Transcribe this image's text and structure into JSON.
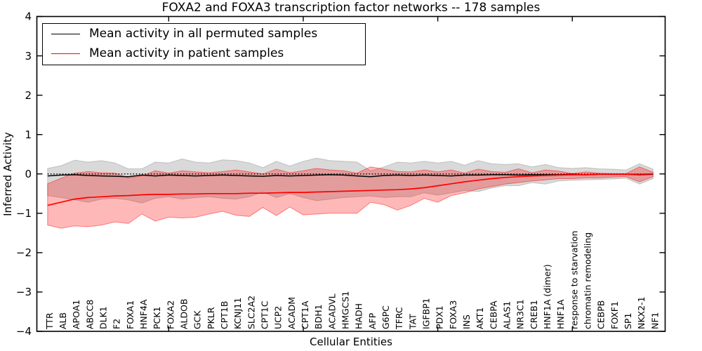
{
  "figure": {
    "title": "FOXA2 and FOXA3 transcription factor networks -- 178 samples",
    "background": "#ffffff"
  },
  "legend": {
    "position": "upper left",
    "items": [
      {
        "label": "Mean activity in all permuted samples",
        "color": "#000000"
      },
      {
        "label": "Mean activity in patient samples",
        "color": "#ff0000"
      }
    ]
  },
  "chart_data": {
    "type": "line",
    "title": "FOXA2 and FOXA3 transcription factor networks -- 178 samples",
    "xlabel": "Cellular Entities",
    "ylabel": "Inferred Activity",
    "ylim": [
      -4,
      4
    ],
    "y_tick_values": [
      4,
      3,
      2,
      1,
      0,
      -1,
      -2,
      -3,
      -4
    ],
    "y_tick_labels": [
      "4",
      "3",
      "2",
      "1",
      "0",
      "−1",
      "−2",
      "−3",
      "−4"
    ],
    "x_major_ticks": [
      10,
      20,
      30,
      40
    ],
    "grid": false,
    "legend_position": "upper left",
    "zero_reference_line": {
      "y": 0,
      "style": "dotted",
      "color": "#000000"
    },
    "categories": [
      "TTR",
      "ALB",
      "APOA1",
      "ABCC8",
      "DLK1",
      "F2",
      "FOXA1",
      "HNF4A",
      "PCK1",
      "FOXA2",
      "ALDOB",
      "GCK",
      "PKLR",
      "CPT1B",
      "KCNJ11",
      "SLC2A2",
      "CPT1C",
      "UCP2",
      "ACADM",
      "CPT1A",
      "BDH1",
      "ACADVL",
      "HMGCS1",
      "HADH",
      "AFP",
      "G6PC",
      "TFRC",
      "TAT",
      "IGFBP1",
      "PDX1",
      "FOXA3",
      "INS",
      "AKT1",
      "CEBPA",
      "ALAS1",
      "NR3C1",
      "CREB1",
      "HNF1A (dimer)",
      "HNF1A",
      "response to starvation",
      "chromatin remodeling",
      "CEBPB",
      "FOXF1",
      "SP1",
      "NKX2-1",
      "NF1"
    ],
    "series": [
      {
        "name": "Mean activity in all permuted samples",
        "color": "#000000",
        "line_style": "solid",
        "values": [
          -0.05,
          -0.03,
          -0.02,
          -0.04,
          -0.05,
          -0.06,
          -0.07,
          -0.03,
          -0.05,
          -0.03,
          -0.04,
          -0.05,
          -0.04,
          -0.03,
          -0.04,
          -0.05,
          -0.06,
          -0.04,
          -0.05,
          -0.04,
          -0.03,
          -0.02,
          -0.03,
          -0.05,
          -0.07,
          -0.04,
          -0.03,
          -0.04,
          -0.03,
          -0.04,
          -0.05,
          -0.03,
          -0.03,
          -0.02,
          -0.02,
          -0.03,
          -0.02,
          -0.02,
          -0.02,
          -0.01,
          -0.02,
          -0.01,
          -0.01,
          -0.01,
          -0.02,
          -0.01
        ]
      },
      {
        "name": "Mean activity in patient samples",
        "color": "#ff0000",
        "line_style": "solid",
        "values": [
          -0.8,
          -0.72,
          -0.64,
          -0.6,
          -0.58,
          -0.56,
          -0.55,
          -0.53,
          -0.52,
          -0.52,
          -0.51,
          -0.51,
          -0.5,
          -0.5,
          -0.5,
          -0.49,
          -0.49,
          -0.48,
          -0.47,
          -0.47,
          -0.46,
          -0.45,
          -0.44,
          -0.43,
          -0.42,
          -0.41,
          -0.4,
          -0.38,
          -0.35,
          -0.3,
          -0.25,
          -0.2,
          -0.16,
          -0.12,
          -0.09,
          -0.07,
          -0.05,
          -0.04,
          -0.03,
          -0.02,
          -0.02,
          -0.01,
          -0.01,
          -0.01,
          -0.01,
          0.0
        ]
      }
    ],
    "bands": [
      {
        "name": "permuted-samples-band",
        "fill": "rgba(0,0,0,0.15)",
        "edge": "rgba(0,0,0,0.18)",
        "upper": [
          0.14,
          0.21,
          0.35,
          0.3,
          0.34,
          0.28,
          0.13,
          0.13,
          0.3,
          0.28,
          0.38,
          0.3,
          0.28,
          0.36,
          0.34,
          0.28,
          0.16,
          0.32,
          0.2,
          0.32,
          0.4,
          0.34,
          0.32,
          0.3,
          0.08,
          0.18,
          0.3,
          0.28,
          0.32,
          0.28,
          0.32,
          0.22,
          0.34,
          0.26,
          0.24,
          0.26,
          0.18,
          0.24,
          0.16,
          0.14,
          0.16,
          0.13,
          0.12,
          0.1,
          0.26,
          0.12
        ],
        "lower": [
          -0.55,
          -0.6,
          -0.66,
          -0.72,
          -0.64,
          -0.62,
          -0.66,
          -0.74,
          -0.62,
          -0.58,
          -0.64,
          -0.6,
          -0.58,
          -0.62,
          -0.64,
          -0.58,
          -0.46,
          -0.6,
          -0.5,
          -0.6,
          -0.68,
          -0.64,
          -0.6,
          -0.58,
          -0.56,
          -0.6,
          -0.58,
          -0.58,
          -0.48,
          -0.54,
          -0.48,
          -0.42,
          -0.45,
          -0.36,
          -0.3,
          -0.3,
          -0.22,
          -0.26,
          -0.18,
          -0.16,
          -0.15,
          -0.14,
          -0.13,
          -0.11,
          -0.26,
          -0.12
        ]
      },
      {
        "name": "patient-samples-band",
        "fill": "rgba(255,0,0,0.28)",
        "edge": "rgba(255,0,0,0.45)",
        "upper": [
          -0.25,
          -0.11,
          0.02,
          0.06,
          0.03,
          0.02,
          -0.1,
          -0.05,
          0.08,
          0.02,
          0.08,
          0.05,
          0.03,
          0.06,
          0.1,
          0.05,
          0.0,
          0.12,
          0.03,
          0.08,
          0.14,
          0.1,
          0.08,
          0.02,
          0.18,
          0.12,
          0.06,
          0.05,
          0.1,
          0.05,
          0.1,
          0.02,
          0.12,
          0.06,
          0.04,
          0.13,
          0.03,
          0.1,
          0.07,
          0.01,
          0.05,
          0.02,
          0.01,
          0.01,
          0.18,
          0.04
        ],
        "lower": [
          -1.3,
          -1.38,
          -1.32,
          -1.34,
          -1.3,
          -1.22,
          -1.26,
          -1.02,
          -1.2,
          -1.1,
          -1.12,
          -1.1,
          -1.02,
          -0.95,
          -1.05,
          -1.08,
          -0.85,
          -1.06,
          -0.84,
          -1.04,
          -1.02,
          -1.0,
          -1.0,
          -1.0,
          -0.72,
          -0.78,
          -0.92,
          -0.8,
          -0.62,
          -0.72,
          -0.55,
          -0.48,
          -0.38,
          -0.32,
          -0.26,
          -0.22,
          -0.18,
          -0.15,
          -0.12,
          -0.12,
          -0.1,
          -0.1,
          -0.08,
          -0.07,
          -0.2,
          -0.07
        ]
      }
    ]
  }
}
